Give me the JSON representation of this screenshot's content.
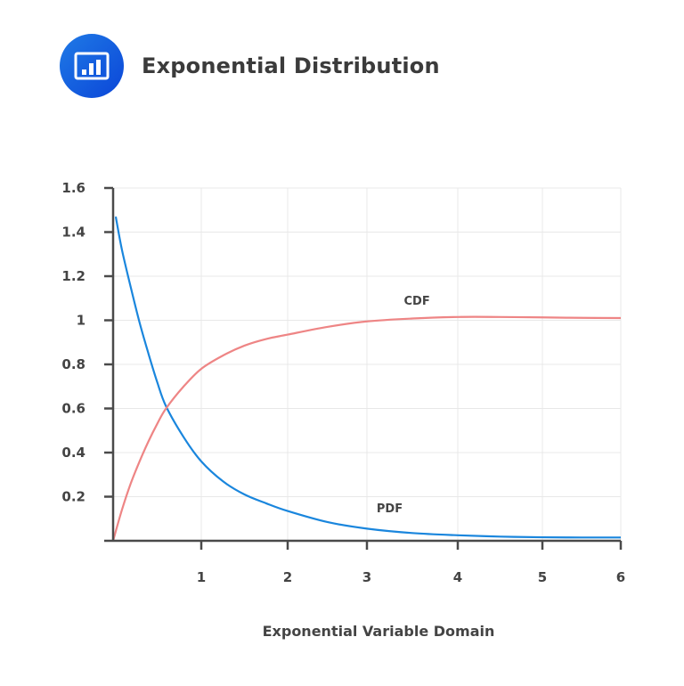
{
  "header": {
    "title": "Exponential Distribution",
    "icon": "bar-chart-icon",
    "icon_colors": {
      "from": "#1f7ae6",
      "to": "#0b46d8"
    }
  },
  "colors": {
    "axis": "#4a4a4a",
    "grid": "#e8e8e8",
    "pdf": "#1a86dd",
    "cdf": "#ee8585",
    "text": "#444444"
  },
  "chart_data": {
    "type": "line",
    "title": "Exponential Distribution",
    "xlabel": "Exponential Variable Domain",
    "ylabel": "",
    "xlim": [
      0,
      6
    ],
    "ylim": [
      0,
      1.6
    ],
    "x_ticks": [
      1,
      2,
      3,
      4,
      5,
      6
    ],
    "y_ticks": [
      "0.2",
      "0.4",
      "0.6",
      "0.8",
      "1",
      "1.2",
      "1.4",
      "1.6"
    ],
    "grid": true,
    "legend": "inline labels",
    "series": [
      {
        "name": "PDF",
        "label_pos": {
          "x": 3.25,
          "y": 0.13
        },
        "x": [
          0.03,
          0.1,
          0.2,
          0.3,
          0.4,
          0.5,
          0.6,
          0.8,
          1.0,
          1.25,
          1.5,
          1.75,
          2.0,
          2.5,
          3.0,
          3.5,
          4.0,
          4.5,
          5.0,
          5.5,
          6.0
        ],
        "values": [
          1.47,
          1.32,
          1.15,
          0.99,
          0.85,
          0.72,
          0.61,
          0.47,
          0.36,
          0.27,
          0.21,
          0.17,
          0.135,
          0.085,
          0.055,
          0.035,
          0.025,
          0.019,
          0.016,
          0.015,
          0.015
        ]
      },
      {
        "name": "CDF",
        "label_pos": {
          "x": 3.55,
          "y": 1.07
        },
        "x": [
          0.0,
          0.1,
          0.2,
          0.3,
          0.4,
          0.5,
          0.6,
          0.8,
          1.0,
          1.25,
          1.5,
          1.75,
          2.0,
          2.5,
          3.0,
          3.5,
          4.0,
          4.5,
          5.0,
          5.5,
          6.0
        ],
        "values": [
          0.0,
          0.14,
          0.26,
          0.36,
          0.45,
          0.53,
          0.6,
          0.7,
          0.78,
          0.84,
          0.885,
          0.915,
          0.935,
          0.97,
          0.995,
          1.008,
          1.015,
          1.015,
          1.013,
          1.011,
          1.01
        ]
      }
    ]
  }
}
